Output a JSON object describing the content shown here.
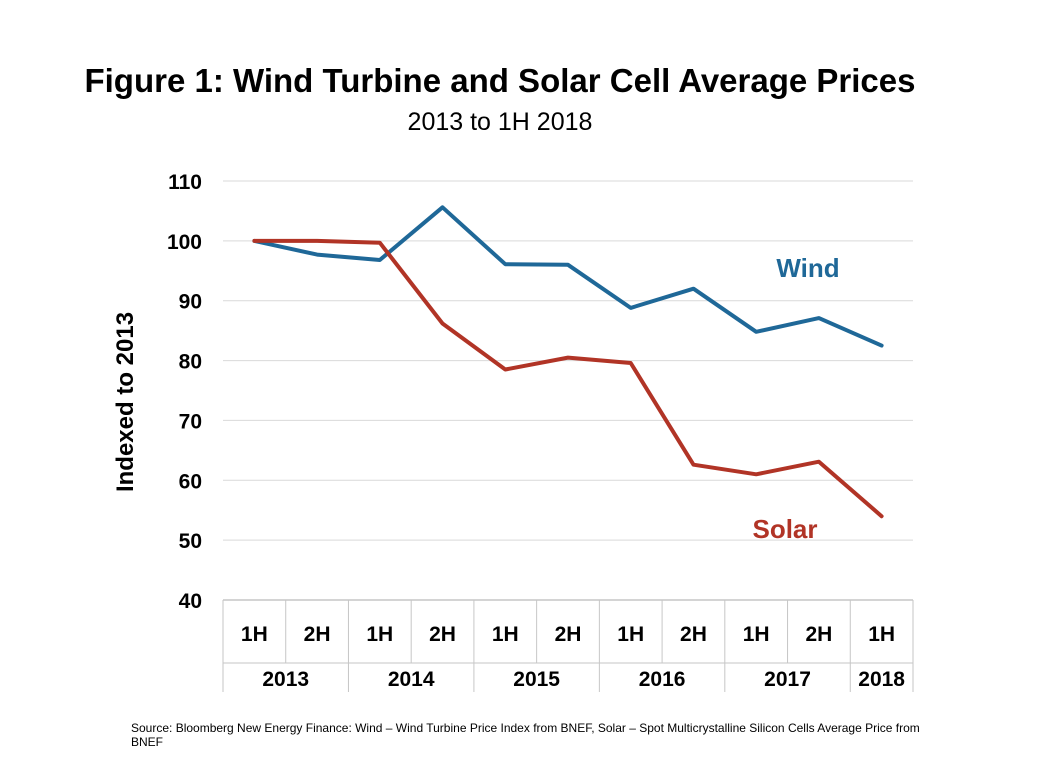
{
  "title": "Figure 1: Wind Turbine and Solar Cell Average Prices",
  "subtitle": "2013 to 1H 2018",
  "source": "Source: Bloomberg New Energy Finance: Wind – Wind Turbine Price Index from BNEF, Solar – Spot Multicrystalline Silicon Cells Average Price from BNEF",
  "chart_data": {
    "type": "line",
    "ylabel": "Indexed to 2013",
    "ylim": [
      40,
      110
    ],
    "yticks": [
      40,
      50,
      60,
      70,
      80,
      90,
      100,
      110
    ],
    "grid": true,
    "categories": [
      "1H",
      "2H",
      "1H",
      "2H",
      "1H",
      "2H",
      "1H",
      "2H",
      "1H",
      "2H",
      "1H"
    ],
    "year_groups": [
      {
        "label": "2013",
        "span": 2
      },
      {
        "label": "2014",
        "span": 2
      },
      {
        "label": "2015",
        "span": 2
      },
      {
        "label": "2016",
        "span": 2
      },
      {
        "label": "2017",
        "span": 2
      },
      {
        "label": "2018",
        "span": 1
      }
    ],
    "series": [
      {
        "name": "Wind",
        "color": "#1f6898",
        "values": [
          100,
          97.7,
          96.8,
          105.6,
          96.1,
          96.0,
          88.8,
          92.0,
          84.8,
          87.1,
          82.5
        ]
      },
      {
        "name": "Solar",
        "color": "#b13426",
        "values": [
          100,
          100,
          99.7,
          86.2,
          78.5,
          80.5,
          79.6,
          62.6,
          61.0,
          63.1,
          54.0
        ]
      }
    ]
  }
}
